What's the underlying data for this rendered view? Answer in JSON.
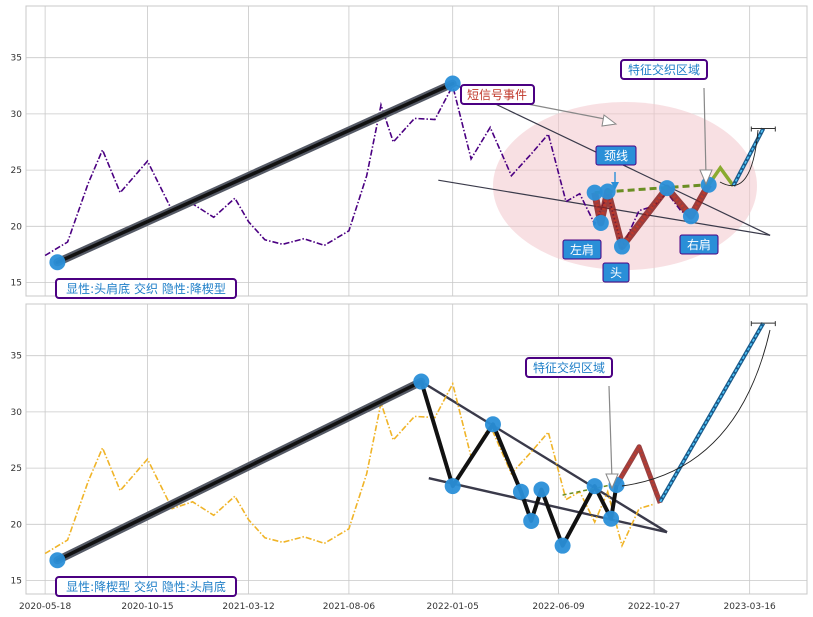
{
  "colors": {
    "background": "#eaeaf2",
    "grid": "#c8c8c8",
    "top_series": "#4b0082",
    "bottom_series": "#f0b428",
    "accent_blue": "#2a8fd8",
    "annotation_border": "#4b0082",
    "neck_line": "#6b8e23",
    "red_segment": "#c0392b",
    "fill_region": "#f3c6cc"
  },
  "chart_data": [
    {
      "type": "line",
      "panel": "top",
      "x_range": [
        "2020-04-20",
        "2023-06-08"
      ],
      "ylim": [
        13.8,
        39.6
      ],
      "yticks": [
        15,
        20,
        25,
        30,
        35
      ],
      "grid": true,
      "series": [
        {
          "style": "dash-dot",
          "points": [
            [
              "2020-05-18",
              17.4
            ],
            [
              "2020-06-20",
              18.6
            ],
            [
              "2020-07-20",
              23.8
            ],
            [
              "2020-08-10",
              26.8
            ],
            [
              "2020-09-05",
              23.0
            ],
            [
              "2020-10-15",
              25.8
            ],
            [
              "2020-11-20",
              21.4
            ],
            [
              "2020-12-20",
              22.0
            ],
            [
              "2021-01-20",
              20.8
            ],
            [
              "2021-02-20",
              22.5
            ],
            [
              "2021-03-12",
              20.4
            ],
            [
              "2021-04-05",
              18.8
            ],
            [
              "2021-05-01",
              18.4
            ],
            [
              "2021-06-01",
              18.9
            ],
            [
              "2021-07-01",
              18.3
            ],
            [
              "2021-08-06",
              19.6
            ],
            [
              "2021-09-01",
              24.5
            ],
            [
              "2021-09-22",
              30.8
            ],
            [
              "2021-10-10",
              27.5
            ],
            [
              "2021-11-10",
              29.6
            ],
            [
              "2021-12-10",
              29.5
            ],
            [
              "2022-01-05",
              32.5
            ],
            [
              "2022-02-01",
              26.0
            ],
            [
              "2022-03-01",
              28.8
            ],
            [
              "2022-04-01",
              24.5
            ],
            [
              "2022-05-01",
              26.5
            ],
            [
              "2022-05-25",
              28.2
            ],
            [
              "2022-06-20",
              22.2
            ],
            [
              "2022-07-10",
              22.9
            ],
            [
              "2022-08-01",
              20.2
            ],
            [
              "2022-08-20",
              22.9
            ],
            [
              "2022-09-10",
              18.1
            ],
            [
              "2022-10-05",
              21.4
            ],
            [
              "2022-10-27",
              21.8
            ],
            [
              "2022-11-15",
              23.0
            ],
            [
              "2022-12-05",
              21.4
            ],
            [
              "2022-12-20",
              20.8
            ]
          ]
        }
      ],
      "points": [
        [
          "2020-06-05",
          16.8
        ],
        [
          "2022-01-05",
          32.7
        ],
        [
          "2022-08-01",
          23.0
        ],
        [
          "2022-08-10",
          20.3
        ],
        [
          "2022-08-20",
          23.1
        ],
        [
          "2022-09-10",
          18.2
        ],
        [
          "2022-11-15",
          23.4
        ],
        [
          "2022-12-20",
          20.9
        ],
        [
          "2023-01-15",
          23.7
        ]
      ],
      "trend_line": [
        [
          "2020-06-05",
          16.8
        ],
        [
          "2022-01-05",
          32.7
        ]
      ],
      "wedge_upper": [
        [
          "2022-01-05",
          32.7
        ],
        [
          "2023-04-15",
          19.2
        ]
      ],
      "wedge_lower": [
        [
          "2021-12-15",
          24.1
        ],
        [
          "2023-04-15",
          19.2
        ]
      ],
      "neck_line": [
        [
          "2022-08-01",
          23.0
        ],
        [
          "2023-01-15",
          23.7
        ]
      ],
      "red_path": [
        [
          "2022-08-01",
          23.0
        ],
        [
          "2022-08-10",
          20.3
        ],
        [
          "2022-08-20",
          23.1
        ],
        [
          "2022-09-10",
          18.2
        ],
        [
          "2022-11-15",
          23.4
        ],
        [
          "2022-12-20",
          20.9
        ],
        [
          "2023-01-15",
          23.7
        ]
      ],
      "projection": [
        [
          "2023-01-15",
          23.7
        ],
        [
          "2023-02-01",
          25.2
        ],
        [
          "2023-02-20",
          23.6
        ],
        [
          "2023-04-05",
          28.7
        ]
      ],
      "annotations": {
        "legend_label": "显性:头肩底 交织 隐性:降楔型",
        "short_signal": "短信号事件",
        "feature_zone": "特征交织区域",
        "neckline": "颈线",
        "left_shoulder": "左肩",
        "head": "头",
        "right_shoulder": "右肩"
      }
    },
    {
      "type": "line",
      "panel": "bottom",
      "x_range": [
        "2020-04-20",
        "2023-06-08"
      ],
      "ylim": [
        13.8,
        39.6
      ],
      "yticks": [
        15,
        20,
        25,
        30,
        35
      ],
      "xticks": [
        "2020-05-18",
        "2020-10-15",
        "2021-03-12",
        "2021-08-06",
        "2022-01-05",
        "2022-06-09",
        "2022-10-27",
        "2023-03-16"
      ],
      "grid": true,
      "series": [
        {
          "style": "dash-dot",
          "points": [
            [
              "2020-05-18",
              17.4
            ],
            [
              "2020-06-20",
              18.6
            ],
            [
              "2020-07-20",
              23.8
            ],
            [
              "2020-08-10",
              26.8
            ],
            [
              "2020-09-05",
              23.0
            ],
            [
              "2020-10-15",
              25.8
            ],
            [
              "2020-11-20",
              21.4
            ],
            [
              "2020-12-20",
              22.0
            ],
            [
              "2021-01-20",
              20.8
            ],
            [
              "2021-02-20",
              22.5
            ],
            [
              "2021-03-12",
              20.4
            ],
            [
              "2021-04-05",
              18.8
            ],
            [
              "2021-05-01",
              18.4
            ],
            [
              "2021-06-01",
              18.9
            ],
            [
              "2021-07-01",
              18.3
            ],
            [
              "2021-08-06",
              19.6
            ],
            [
              "2021-09-01",
              24.5
            ],
            [
              "2021-09-22",
              30.8
            ],
            [
              "2021-10-10",
              27.5
            ],
            [
              "2021-11-10",
              29.6
            ],
            [
              "2021-12-10",
              29.5
            ],
            [
              "2022-01-05",
              32.5
            ],
            [
              "2022-02-01",
              26.0
            ],
            [
              "2022-03-01",
              28.8
            ],
            [
              "2022-04-01",
              24.5
            ],
            [
              "2022-05-01",
              26.5
            ],
            [
              "2022-05-25",
              28.2
            ],
            [
              "2022-06-20",
              22.2
            ],
            [
              "2022-07-10",
              22.9
            ],
            [
              "2022-08-01",
              20.2
            ],
            [
              "2022-08-20",
              22.9
            ],
            [
              "2022-09-10",
              18.1
            ],
            [
              "2022-10-05",
              21.4
            ],
            [
              "2022-10-27",
              21.8
            ]
          ]
        }
      ],
      "points": [
        [
          "2020-06-05",
          16.8
        ],
        [
          "2021-11-20",
          32.7
        ],
        [
          "2022-01-05",
          23.4
        ],
        [
          "2022-03-05",
          28.9
        ],
        [
          "2022-04-15",
          22.9
        ],
        [
          "2022-04-30",
          20.3
        ],
        [
          "2022-05-15",
          23.1
        ],
        [
          "2022-06-15",
          18.1
        ],
        [
          "2022-08-01",
          23.4
        ],
        [
          "2022-08-25",
          20.5
        ],
        [
          "2022-09-02",
          23.5
        ]
      ],
      "trend_line": [
        [
          "2020-06-05",
          16.8
        ],
        [
          "2021-11-20",
          32.7
        ]
      ],
      "zigzag": [
        [
          "2021-11-20",
          32.7
        ],
        [
          "2022-01-05",
          23.4
        ],
        [
          "2022-03-05",
          28.9
        ],
        [
          "2022-04-15",
          22.9
        ],
        [
          "2022-04-30",
          20.3
        ],
        [
          "2022-05-15",
          23.1
        ],
        [
          "2022-06-15",
          18.1
        ],
        [
          "2022-08-01",
          23.4
        ],
        [
          "2022-08-25",
          20.5
        ],
        [
          "2022-09-02",
          23.5
        ]
      ],
      "wedge_upper": [
        [
          "2021-11-20",
          32.7
        ],
        [
          "2022-11-15",
          19.3
        ]
      ],
      "wedge_lower": [
        [
          "2021-12-01",
          24.1
        ],
        [
          "2022-11-15",
          19.3
        ]
      ],
      "neck_line": [
        [
          "2022-06-15",
          22.6
        ],
        [
          "2022-09-02",
          23.6
        ]
      ],
      "red_path": [
        [
          "2022-09-02",
          23.5
        ],
        [
          "2022-10-05",
          26.9
        ],
        [
          "2022-11-05",
          21.9
        ]
      ],
      "projection": [
        [
          "2022-11-05",
          22.0
        ],
        [
          "2023-04-05",
          37.9
        ]
      ],
      "annotations": {
        "legend_label": "显性:降楔型 交织 隐性:头肩底",
        "feature_zone": "特征交织区域"
      }
    }
  ]
}
